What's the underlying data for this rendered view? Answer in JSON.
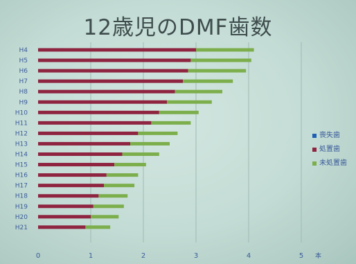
{
  "slide": {
    "title": "12歳児のDMF歯数"
  },
  "chart_data": {
    "type": "bar",
    "orientation": "horizontal",
    "stacked": true,
    "title": "12歳児のDMF歯数",
    "categories": [
      "H4",
      "H5",
      "H6",
      "H7",
      "H8",
      "H9",
      "H10",
      "H11",
      "H12",
      "H13",
      "H14",
      "H15",
      "H16",
      "H17",
      "H18",
      "H19",
      "H20",
      "H21"
    ],
    "series": [
      {
        "name": "喪失歯",
        "color": "#1f5fb4",
        "values": [
          0,
          0,
          0,
          0,
          0,
          0,
          0,
          0,
          0,
          0,
          0,
          0,
          0,
          0,
          0,
          0,
          0,
          0
        ]
      },
      {
        "name": "処置歯",
        "color": "#8e2440",
        "values": [
          3.0,
          2.9,
          2.85,
          2.75,
          2.6,
          2.45,
          2.3,
          2.15,
          1.9,
          1.75,
          1.6,
          1.45,
          1.3,
          1.25,
          1.15,
          1.05,
          1.0,
          0.9
        ]
      },
      {
        "name": "未処置歯",
        "color": "#7cae4c",
        "values": [
          1.1,
          1.15,
          1.1,
          0.95,
          0.9,
          0.85,
          0.75,
          0.75,
          0.75,
          0.75,
          0.7,
          0.6,
          0.6,
          0.58,
          0.55,
          0.58,
          0.53,
          0.47
        ]
      }
    ],
    "xticks": [
      "0",
      "1",
      "2",
      "3",
      "4",
      "5"
    ],
    "xlim": [
      0,
      5
    ],
    "xunit": "本",
    "grid": true,
    "legend_position": "right"
  }
}
